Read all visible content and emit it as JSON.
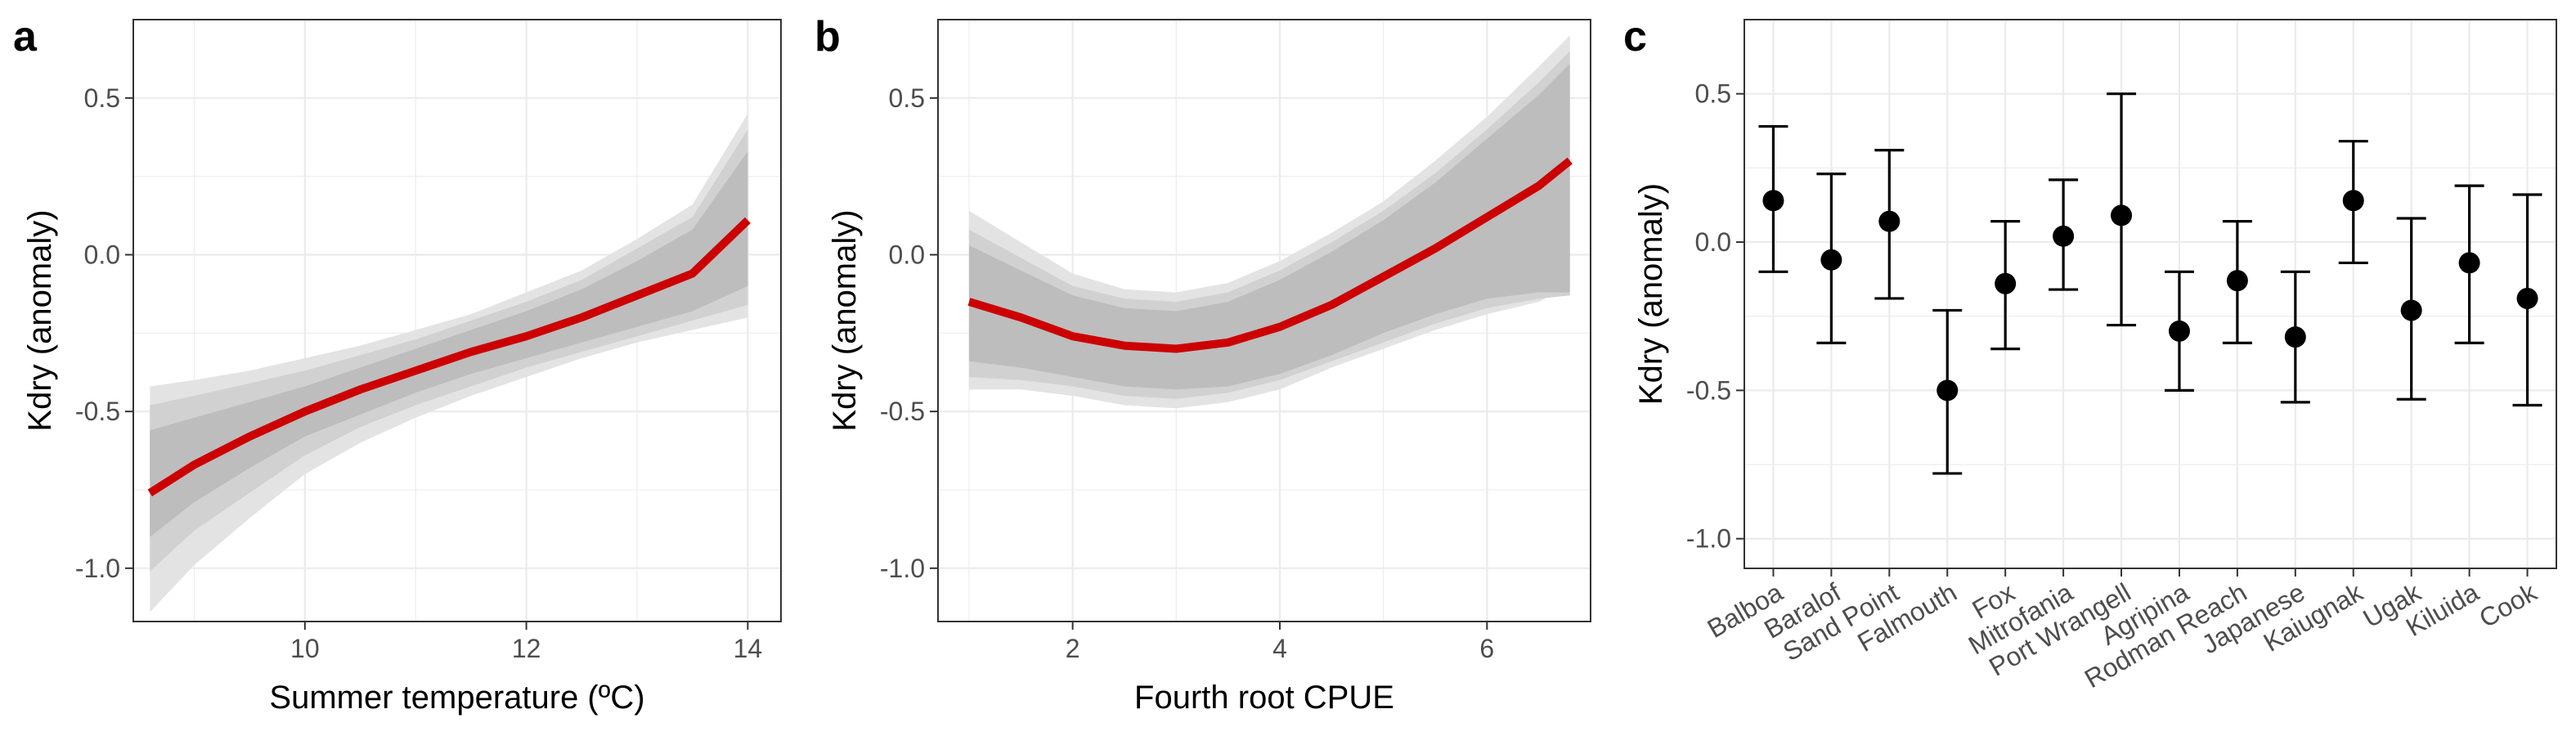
{
  "colors": {
    "fit_line": "#cc0000",
    "band_inner": "#bdbdbd",
    "band_mid": "#d1d1d1",
    "band_outer": "#e3e3e3",
    "grid": "#ebebeb",
    "point": "#000000"
  },
  "chart_data": [
    {
      "panel": "a",
      "type": "line",
      "xlabel": "Summer temperature (ºC)",
      "ylabel": "Kdry (anomaly)",
      "xlim": [
        8.45,
        14.3
      ],
      "ylim": [
        -1.17,
        0.75
      ],
      "xticks": [
        10,
        12,
        14
      ],
      "yticks": [
        -1.0,
        -0.5,
        0.0,
        0.5
      ],
      "ytick_labels": [
        "-1.0",
        "-0.5",
        "0.0",
        "0.5"
      ],
      "grid": true,
      "x": [
        8.6,
        9.0,
        9.5,
        10.0,
        10.5,
        11.0,
        11.5,
        12.0,
        12.5,
        13.0,
        13.5,
        14.0
      ],
      "fit": [
        -0.76,
        -0.67,
        -0.58,
        -0.5,
        -0.43,
        -0.37,
        -0.31,
        -0.26,
        -0.2,
        -0.13,
        -0.06,
        0.11
      ],
      "band_inner": {
        "lower": [
          -0.9,
          -0.79,
          -0.68,
          -0.58,
          -0.51,
          -0.44,
          -0.38,
          -0.33,
          -0.28,
          -0.23,
          -0.18,
          -0.1
        ],
        "upper": [
          -0.56,
          -0.52,
          -0.47,
          -0.42,
          -0.36,
          -0.3,
          -0.24,
          -0.18,
          -0.11,
          -0.02,
          0.08,
          0.33
        ]
      },
      "band_mid": {
        "lower": [
          -1.01,
          -0.88,
          -0.76,
          -0.64,
          -0.55,
          -0.48,
          -0.42,
          -0.36,
          -0.31,
          -0.26,
          -0.21,
          -0.16
        ],
        "upper": [
          -0.48,
          -0.45,
          -0.41,
          -0.37,
          -0.32,
          -0.27,
          -0.21,
          -0.15,
          -0.08,
          0.02,
          0.12,
          0.4
        ]
      },
      "band_outer": {
        "lower": [
          -1.14,
          -0.99,
          -0.84,
          -0.7,
          -0.6,
          -0.52,
          -0.45,
          -0.39,
          -0.33,
          -0.28,
          -0.24,
          -0.2
        ],
        "upper": [
          -0.42,
          -0.4,
          -0.37,
          -0.33,
          -0.29,
          -0.24,
          -0.19,
          -0.12,
          -0.05,
          0.05,
          0.16,
          0.45
        ]
      }
    },
    {
      "panel": "b",
      "type": "line",
      "xlabel": "Fourth root CPUE",
      "ylabel": "Kdry (anomaly)",
      "xlim": [
        0.7,
        7.0
      ],
      "ylim": [
        -1.17,
        0.75
      ],
      "xticks": [
        2,
        4,
        6
      ],
      "yticks": [
        -1.0,
        -0.5,
        0.0,
        0.5
      ],
      "ytick_labels": [
        "-1.0",
        "-0.5",
        "0.0",
        "0.5"
      ],
      "grid": true,
      "x": [
        1.0,
        1.5,
        2.0,
        2.5,
        3.0,
        3.5,
        4.0,
        4.5,
        5.0,
        5.5,
        6.0,
        6.5,
        6.8
      ],
      "fit": [
        -0.15,
        -0.2,
        -0.26,
        -0.29,
        -0.3,
        -0.28,
        -0.23,
        -0.16,
        -0.07,
        0.02,
        0.12,
        0.22,
        0.3
      ],
      "band_inner": {
        "lower": [
          -0.34,
          -0.36,
          -0.39,
          -0.42,
          -0.43,
          -0.42,
          -0.38,
          -0.32,
          -0.25,
          -0.19,
          -0.14,
          -0.12,
          -0.12
        ],
        "upper": [
          0.03,
          -0.05,
          -0.13,
          -0.17,
          -0.18,
          -0.15,
          -0.08,
          0.01,
          0.11,
          0.23,
          0.37,
          0.51,
          0.61
        ]
      },
      "band_mid": {
        "lower": [
          -0.39,
          -0.4,
          -0.42,
          -0.45,
          -0.46,
          -0.44,
          -0.4,
          -0.34,
          -0.28,
          -0.22,
          -0.17,
          -0.14,
          -0.13
        ],
        "upper": [
          0.08,
          -0.01,
          -0.1,
          -0.14,
          -0.15,
          -0.12,
          -0.05,
          0.04,
          0.14,
          0.26,
          0.4,
          0.55,
          0.65
        ]
      },
      "band_outer": {
        "lower": [
          -0.43,
          -0.43,
          -0.45,
          -0.48,
          -0.49,
          -0.47,
          -0.43,
          -0.36,
          -0.3,
          -0.24,
          -0.19,
          -0.15,
          -0.1
        ],
        "upper": [
          0.14,
          0.04,
          -0.06,
          -0.11,
          -0.12,
          -0.09,
          -0.02,
          0.07,
          0.17,
          0.3,
          0.44,
          0.6,
          0.7
        ]
      }
    },
    {
      "panel": "c",
      "type": "scatter",
      "ylabel": "Kdry (anomaly)",
      "ylim": [
        -1.1,
        0.75
      ],
      "yticks": [
        -1.0,
        -0.5,
        0.0,
        0.5
      ],
      "ytick_labels": [
        "-1.0",
        "-0.5",
        "0.0",
        "0.5"
      ],
      "grid": true,
      "categories": [
        "Balboa",
        "Baralof",
        "Sand Point",
        "Falmouth",
        "Fox",
        "Mitrofania",
        "Port Wrangell",
        "Agripina",
        "Rodman Reach",
        "Japanese",
        "Kaiugnak",
        "Ugak",
        "Kiluida",
        "Cook"
      ],
      "values": [
        0.14,
        -0.06,
        0.07,
        -0.5,
        -0.14,
        0.02,
        0.09,
        -0.3,
        -0.13,
        -0.32,
        0.14,
        -0.23,
        -0.07,
        -0.19
      ],
      "lower": [
        -0.1,
        -0.34,
        -0.19,
        -0.78,
        -0.36,
        -0.16,
        -0.28,
        -0.5,
        -0.34,
        -0.54,
        -0.07,
        -0.53,
        -0.34,
        -0.55
      ],
      "upper": [
        0.39,
        0.23,
        0.31,
        -0.23,
        0.07,
        0.21,
        0.5,
        -0.1,
        0.07,
        -0.1,
        0.34,
        0.08,
        0.19,
        0.16
      ]
    }
  ]
}
